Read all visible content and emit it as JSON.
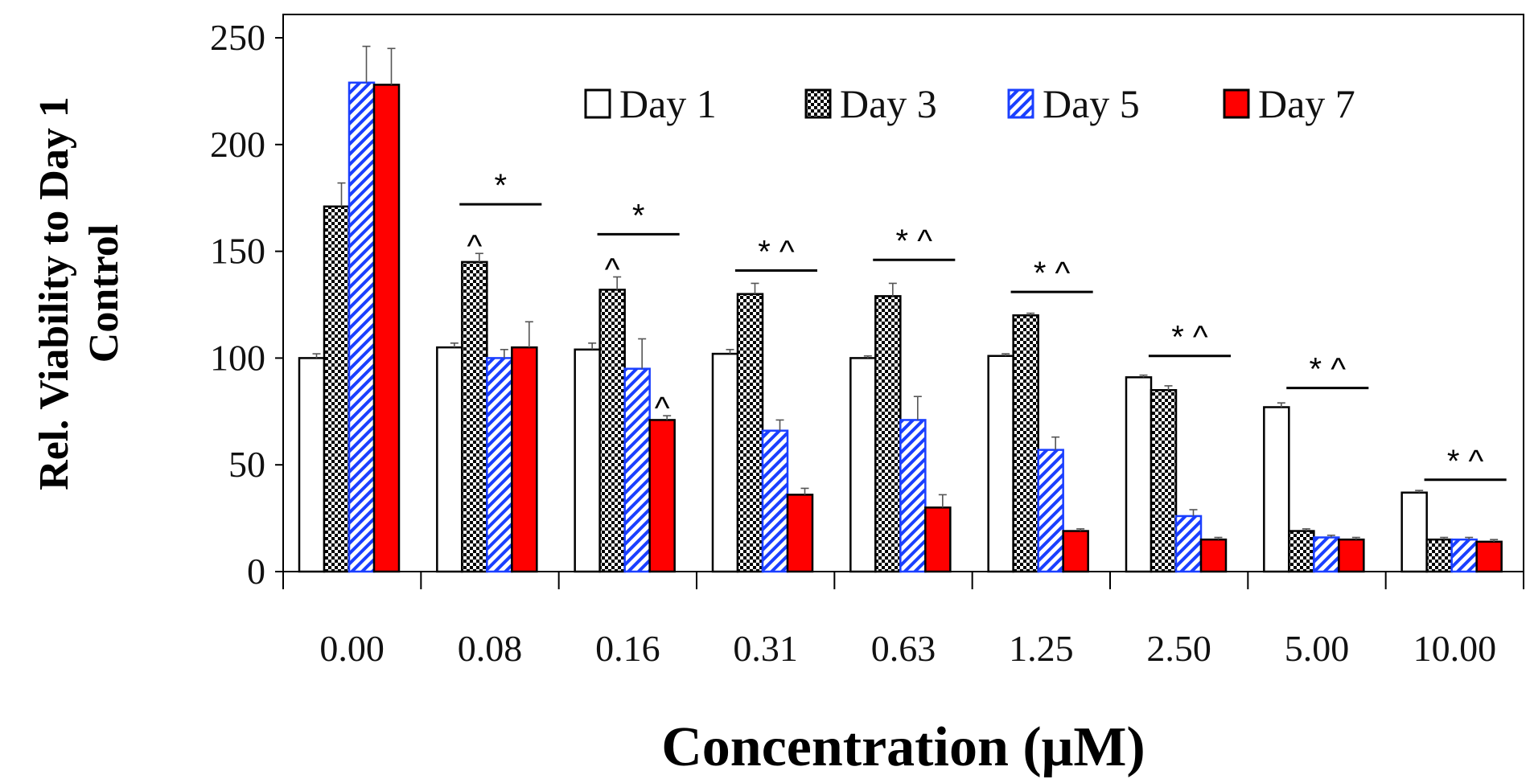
{
  "chart_data": {
    "type": "bar",
    "title": "",
    "xlabel": "Concentration (μM)",
    "ylabel_line1": "Rel. Viability to Day 1",
    "ylabel_line2": "Control",
    "ylim": [
      0,
      250
    ],
    "yticks": [
      "0",
      "50",
      "100",
      "150",
      "200",
      "250"
    ],
    "categories": [
      "0.00",
      "0.08",
      "0.16",
      "0.31",
      "0.63",
      "1.25",
      "2.50",
      "5.00",
      "10.00"
    ],
    "legend_position": "top-right",
    "series": [
      {
        "name": "Day 1",
        "fill": "#ffffff",
        "stroke": "#000000",
        "pattern": "none",
        "values": [
          100,
          105,
          104,
          102,
          100,
          101,
          91,
          77,
          37
        ],
        "errors": [
          2,
          2,
          3,
          2,
          1,
          1,
          1,
          2,
          1
        ]
      },
      {
        "name": "Day 3",
        "fill": "#000000",
        "stroke": "#000000",
        "pattern": "checker",
        "values": [
          171,
          145,
          132,
          130,
          129,
          120,
          85,
          19,
          15
        ],
        "errors": [
          11,
          4,
          6,
          5,
          6,
          1,
          2,
          1,
          1
        ]
      },
      {
        "name": "Day 5",
        "fill": "#1a3fff",
        "stroke": "#1a3fff",
        "pattern": "diagonal",
        "values": [
          229,
          100,
          95,
          66,
          71,
          57,
          26,
          16,
          15
        ],
        "errors": [
          17,
          4,
          14,
          5,
          11,
          6,
          3,
          1,
          1
        ]
      },
      {
        "name": "Day 7",
        "fill": "#ff0000",
        "stroke": "#000000",
        "pattern": "none",
        "values": [
          228,
          105,
          71,
          36,
          30,
          19,
          15,
          15,
          14
        ],
        "errors": [
          17,
          12,
          2,
          3,
          6,
          1,
          1,
          1,
          1
        ]
      }
    ],
    "annotations": [
      {
        "category": 1,
        "bar_text": "^",
        "bar_series": 1,
        "line_text": "*",
        "line_y": 172
      },
      {
        "category": 2,
        "bar_text": "^",
        "bar_series": 1,
        "line_text": "*",
        "line_y": 158
      },
      {
        "category": 2,
        "bar_text": "^",
        "bar_series": 3,
        "line_text": "",
        "line_y": null
      },
      {
        "category": 3,
        "bar_text": "",
        "bar_series": null,
        "line_text": "* ^",
        "line_y": 141
      },
      {
        "category": 4,
        "bar_text": "",
        "bar_series": null,
        "line_text": "* ^",
        "line_y": 146
      },
      {
        "category": 5,
        "bar_text": "",
        "bar_series": null,
        "line_text": "* ^",
        "line_y": 131
      },
      {
        "category": 6,
        "bar_text": "",
        "bar_series": null,
        "line_text": "* ^",
        "line_y": 101
      },
      {
        "category": 7,
        "bar_text": "",
        "bar_series": null,
        "line_text": "* ^",
        "line_y": 86
      },
      {
        "category": 8,
        "bar_text": "",
        "bar_series": null,
        "line_text": "* ^",
        "line_y": 43
      }
    ]
  }
}
